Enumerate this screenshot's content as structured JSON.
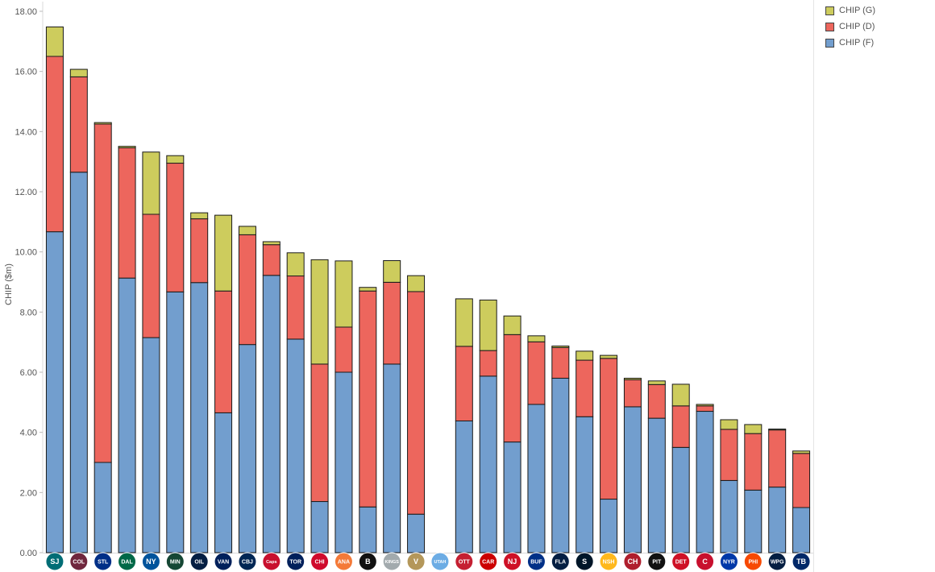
{
  "chart_data": {
    "type": "stacked-bar",
    "title": "",
    "xlabel": "",
    "ylabel": "CHIP ($m)",
    "ylim": [
      0,
      18
    ],
    "yticks": [
      "0.00",
      "2.00",
      "4.00",
      "6.00",
      "8.00",
      "10.00",
      "12.00",
      "14.00",
      "16.00",
      "18.00"
    ],
    "grid": false,
    "legend_position": "top-right",
    "categories": [
      "SJS",
      "COL",
      "STL",
      "DAL",
      "NYI",
      "MIN",
      "EDM",
      "VAN",
      "CBJ",
      "WSH",
      "TOR",
      "CHI",
      "ANA",
      "BOS",
      "LAK",
      "VGK",
      "UTA",
      "OTT",
      "CAR",
      "NJD",
      "BUF",
      "FLA",
      "SEA",
      "NSH",
      "MTL",
      "PIT",
      "DET",
      "CGY",
      "NYR",
      "PHI",
      "WPG",
      "TBL"
    ],
    "category_logos": [
      "SJ",
      "COL",
      "STL",
      "DAL",
      "NY",
      "MIN",
      "OIL",
      "VAN",
      "CBJ",
      "Caps",
      "TOR",
      "CHI",
      "ANA",
      "B",
      "KINGS",
      "V",
      "UTAH",
      "OTT",
      "CAR",
      "NJ",
      "BUF",
      "FLA",
      "S",
      "NSH",
      "CH",
      "PIT",
      "DET",
      "C",
      "NYR",
      "PHI",
      "WPG",
      "TB"
    ],
    "series": [
      {
        "name": "CHIP (F)",
        "color": "#729ece",
        "values": [
          10.67,
          12.65,
          3.0,
          9.13,
          7.15,
          8.67,
          8.98,
          4.65,
          6.92,
          9.22,
          7.1,
          1.7,
          6.0,
          1.52,
          6.27,
          1.28,
          0.0,
          4.38,
          5.87,
          3.68,
          4.93,
          5.8,
          4.52,
          1.78,
          4.85,
          4.47,
          3.5,
          4.7,
          2.4,
          2.08,
          2.18,
          1.5
        ]
      },
      {
        "name": "CHIP (D)",
        "color": "#ed665d",
        "values": [
          5.83,
          3.17,
          11.25,
          4.33,
          4.1,
          4.28,
          2.12,
          4.05,
          3.65,
          1.02,
          2.1,
          4.57,
          1.5,
          7.18,
          2.72,
          7.4,
          0.0,
          2.48,
          0.85,
          3.57,
          2.08,
          1.02,
          1.88,
          4.68,
          0.9,
          1.12,
          1.38,
          0.18,
          1.7,
          1.88,
          1.9,
          1.8
        ]
      },
      {
        "name": "CHIP (G)",
        "color": "#cdcc5d",
        "values": [
          0.98,
          0.25,
          0.05,
          0.05,
          2.07,
          0.25,
          0.2,
          2.52,
          0.28,
          0.1,
          0.77,
          3.47,
          2.2,
          0.12,
          0.72,
          0.53,
          0.0,
          1.58,
          1.68,
          0.62,
          0.2,
          0.05,
          0.3,
          0.1,
          0.05,
          0.12,
          0.72,
          0.05,
          0.32,
          0.3,
          0.03,
          0.08
        ]
      }
    ],
    "legend": [
      "CHIP (G)",
      "CHIP (D)",
      "CHIP (F)"
    ]
  },
  "legend": {
    "items": [
      {
        "label": "CHIP (G)",
        "color": "#cdcc5d"
      },
      {
        "label": "CHIP (D)",
        "color": "#ed665d"
      },
      {
        "label": "CHIP (F)",
        "color": "#729ece"
      }
    ]
  },
  "logo_colors": [
    "#006d75",
    "#6f263d",
    "#002f87",
    "#006847",
    "#00539b",
    "#154734",
    "#041e42",
    "#00205b",
    "#002654",
    "#c8102e",
    "#00205b",
    "#cf0a2c",
    "#f47a38",
    "#111111",
    "#a2aaad",
    "#b4975a",
    "#6cace4",
    "#c52032",
    "#cc0000",
    "#ce1126",
    "#003087",
    "#041e42",
    "#001628",
    "#ffb81c",
    "#af1e2d",
    "#111111",
    "#ce1126",
    "#c8102e",
    "#0038a8",
    "#f74902",
    "#041e42",
    "#002868"
  ]
}
